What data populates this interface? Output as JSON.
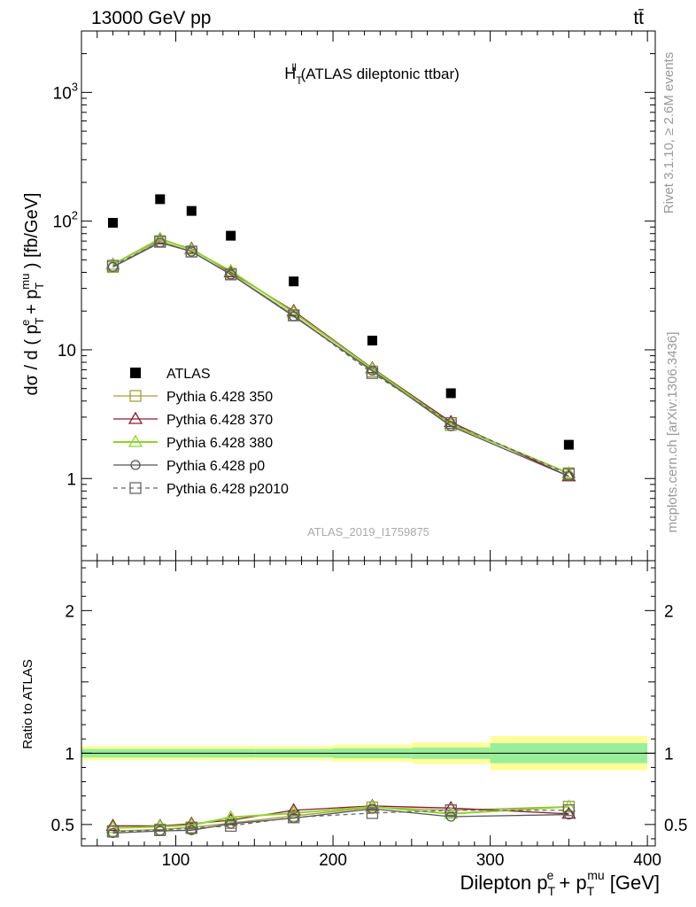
{
  "header": {
    "energy": "13000 GeV pp",
    "process": "tt̄"
  },
  "side_labels": {
    "rivet": "Rivet 3.1.10, ≥ 2.6M events",
    "mcplots": "mcplots.cern.ch [arXiv:1306.3436]"
  },
  "chart_data": [
    {
      "type": "line",
      "title": "H_T^ll (ATLAS dileptonic ttbar)",
      "title_main": "H",
      "title_sub": "T",
      "title_sup": "ll",
      "title_rest": " (ATLAS dileptonic ttbar)",
      "analysis_id": "ATLAS_2019_I1759875",
      "ylabel": "dσ / d ( p_T^e + p_T^mu ) [fb/GeV]",
      "ylabel_parts": {
        "a": "dσ / d ( p",
        "sub1": "T",
        "sup1": "e",
        "b": " + p",
        "sub2": "T",
        "sup2": "mu",
        "c": " ) [fb/GeV]"
      },
      "xlim": [
        40,
        405
      ],
      "ylim": [
        0.23,
        3000
      ],
      "yscale": "log",
      "yticks": [
        1,
        10,
        100,
        1000
      ],
      "yticklabels": [
        "1",
        "10",
        "10^2",
        "10^3"
      ],
      "legend_position": "lower-left",
      "data": {
        "name": "ATLAS",
        "x": [
          60,
          90,
          110,
          135,
          175,
          225,
          275,
          350
        ],
        "y": [
          97,
          148,
          120,
          77,
          34,
          11.8,
          4.6,
          1.83
        ]
      },
      "series": [
        {
          "name": "Pythia 6.428 350",
          "color": "#a0a03c",
          "marker": "square",
          "dash": "solid",
          "x": [
            60,
            90,
            110,
            135,
            175,
            225,
            275,
            350
          ],
          "y": [
            44,
            70,
            58,
            39,
            18.6,
            6.8,
            2.6,
            1.1
          ]
        },
        {
          "name": "Pythia 6.428 370",
          "color": "#8b1a2b",
          "marker": "triangle",
          "dash": "solid",
          "x": [
            60,
            90,
            110,
            135,
            175,
            225,
            275,
            350
          ],
          "y": [
            46,
            72,
            61,
            40,
            20,
            7.2,
            2.75,
            1.04
          ]
        },
        {
          "name": "Pythia 6.428 380",
          "color": "#8ed42a",
          "marker": "triangle",
          "dash": "solid",
          "x": [
            60,
            90,
            110,
            135,
            175,
            225,
            275,
            350
          ],
          "y": [
            46,
            73,
            60,
            41,
            19.5,
            7.1,
            2.65,
            1.1
          ]
        },
        {
          "name": "Pythia 6.428 p0",
          "color": "#555555",
          "marker": "circle",
          "dash": "solid",
          "x": [
            60,
            90,
            110,
            135,
            175,
            225,
            275,
            350
          ],
          "y": [
            44,
            68,
            58,
            38.5,
            18.2,
            6.9,
            2.55,
            1.04
          ]
        },
        {
          "name": "Pythia 6.428 p2010",
          "color": "#666666",
          "marker": "square",
          "dash": "dashed",
          "x": [
            60,
            90,
            110,
            135,
            175,
            225,
            275,
            350
          ],
          "y": [
            45,
            69,
            58,
            38.5,
            18.5,
            6.6,
            2.7,
            1.08
          ]
        }
      ]
    },
    {
      "type": "line",
      "ylabel": "Ratio to ATLAS",
      "xlabel": "Dilepton p_T^e + p_T^mu [GeV]",
      "xlabel_parts": {
        "a": "Dilepton p",
        "sub1": "T",
        "sup1": "e",
        "b": " + p",
        "sub2": "T",
        "sup2": "mu",
        "c": " [GeV]"
      },
      "xlim": [
        40,
        405
      ],
      "ylim": [
        0.35,
        2.35
      ],
      "xticks": [
        100,
        200,
        300,
        400
      ],
      "yticks": [
        0.5,
        1,
        2
      ],
      "yticklabels": [
        "0.5",
        "1",
        "2"
      ],
      "reference": 1.0,
      "bins": [
        40,
        80,
        100,
        120,
        150,
        200,
        250,
        300,
        400
      ],
      "band_stat": [
        0.03,
        0.03,
        0.03,
        0.03,
        0.03,
        0.035,
        0.04,
        0.07
      ],
      "band_total": [
        0.05,
        0.05,
        0.05,
        0.05,
        0.05,
        0.06,
        0.075,
        0.12
      ],
      "series": [
        {
          "name": "Pythia 6.428 350",
          "x": [
            60,
            90,
            110,
            135,
            175,
            225,
            275,
            350
          ],
          "y": [
            0.455,
            0.465,
            0.48,
            0.51,
            0.56,
            0.62,
            0.6,
            0.625
          ]
        },
        {
          "name": "Pythia 6.428 370",
          "x": [
            60,
            90,
            110,
            135,
            175,
            225,
            275,
            350
          ],
          "y": [
            0.49,
            0.49,
            0.505,
            0.53,
            0.6,
            0.63,
            0.615,
            0.575
          ]
        },
        {
          "name": "Pythia 6.428 380",
          "x": [
            60,
            90,
            110,
            135,
            175,
            225,
            275,
            350
          ],
          "y": [
            0.475,
            0.485,
            0.495,
            0.55,
            0.58,
            0.625,
            0.575,
            0.625
          ]
        },
        {
          "name": "Pythia 6.428 p0",
          "x": [
            60,
            90,
            110,
            135,
            175,
            225,
            275,
            350
          ],
          "y": [
            0.44,
            0.455,
            0.46,
            0.505,
            0.545,
            0.61,
            0.555,
            0.57
          ]
        },
        {
          "name": "Pythia 6.428 p2010",
          "x": [
            60,
            90,
            110,
            135,
            175,
            225,
            275,
            350
          ],
          "y": [
            0.45,
            0.46,
            0.475,
            0.49,
            0.55,
            0.58,
            0.6,
            0.6
          ]
        }
      ]
    }
  ]
}
